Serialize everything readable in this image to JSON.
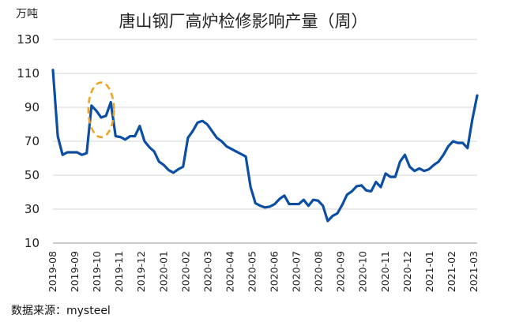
{
  "chart_data": {
    "type": "line",
    "title": "唐山钢厂高炉检修影响产量（周）",
    "unit": "万吨",
    "ylim": [
      10,
      130
    ],
    "yticks": [
      10,
      30,
      50,
      70,
      90,
      110,
      130
    ],
    "grid": true,
    "x_tick_labels": [
      "2019-08",
      "2019-09",
      "2019-10",
      "2019-11",
      "2019-12",
      "2020-01",
      "2020-02",
      "2020-03",
      "2020-04",
      "2020-05",
      "2020-06",
      "2020-07",
      "2020-08",
      "2020-09",
      "2020-10",
      "2020-11",
      "2020-12",
      "2021-01",
      "2021-02",
      "2021-03"
    ],
    "series": [
      {
        "color": "#0b4ea2",
        "values": [
          112,
          73,
          62,
          63.5,
          63.5,
          63.5,
          62,
          63,
          91,
          88,
          84,
          85,
          93,
          73,
          72.5,
          71,
          73,
          73,
          79,
          70,
          66.5,
          64,
          58,
          56,
          53,
          51.5,
          53.5,
          55,
          72,
          76,
          81,
          82,
          80,
          76,
          72,
          70,
          67,
          65.5,
          64,
          62.5,
          61,
          43,
          33.5,
          32,
          31,
          31.5,
          33,
          36,
          38,
          33,
          33,
          33,
          35.5,
          32,
          35.5,
          35,
          32,
          23,
          26,
          27.5,
          32.5,
          38.5,
          40.5,
          43.5,
          44,
          41,
          40.5,
          46,
          43,
          51,
          49,
          49,
          58,
          62,
          55,
          52.5,
          54,
          52.5,
          53.5,
          56,
          58,
          62,
          67,
          70,
          69,
          69,
          66,
          83,
          97
        ]
      }
    ],
    "annotation": {
      "type": "dashed-ellipse",
      "color": "#f0a020",
      "x_start": 8,
      "x_end": 12
    }
  },
  "source": "数据来源：mysteel"
}
